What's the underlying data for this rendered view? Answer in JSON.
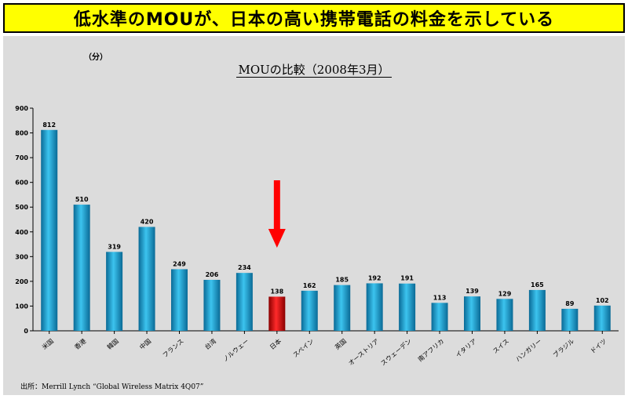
{
  "banner": {
    "text": "低水準のMOUが、日本の高い携帯電話の料金を示している"
  },
  "unit_label": "（分）",
  "source": "出所：Merrill Lynch “Global Wireless Matrix 4Q07”",
  "colors": {
    "bar": "#1aa8d8",
    "bar_dark": "#0a6a96",
    "highlight": "#e01010",
    "highlight_dark": "#8a0000",
    "arrow": "#ff0000",
    "banner": "#ffff00",
    "panel": "#dcdcdc"
  },
  "chart_data": {
    "type": "bar",
    "title": "MOUの比較（2008年3月）",
    "xlabel": "",
    "ylabel": "（分）",
    "ylim": [
      0,
      900
    ],
    "yticks": [
      0,
      100,
      200,
      300,
      400,
      500,
      600,
      700,
      800,
      900
    ],
    "categories": [
      "米国",
      "香港",
      "韓国",
      "中国",
      "フランス",
      "台湾",
      "ノルウェー",
      "日本",
      "スペイン",
      "英国",
      "オーストリア",
      "スウェーデン",
      "南アフリカ",
      "イタリア",
      "スイス",
      "ハンガリー",
      "ブラジル",
      "ドイツ"
    ],
    "values": [
      812,
      510,
      319,
      420,
      249,
      206,
      234,
      138,
      162,
      185,
      192,
      191,
      113,
      139,
      129,
      165,
      89,
      102
    ],
    "highlight_category": "日本",
    "legend": "none",
    "grid": false
  }
}
